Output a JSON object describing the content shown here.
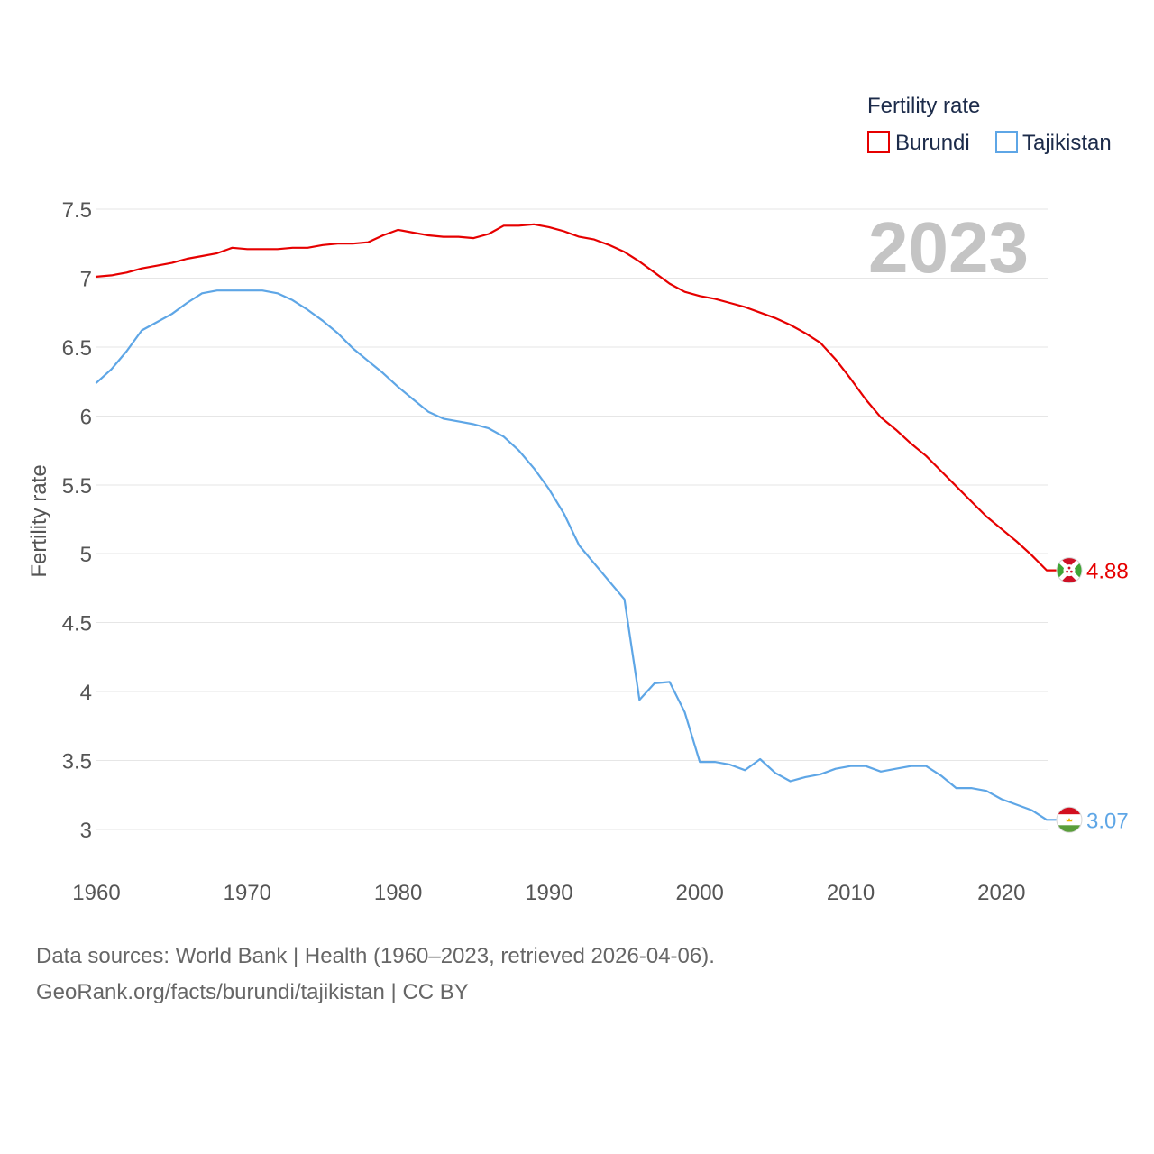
{
  "year_label": "2023",
  "chart_data": {
    "type": "line",
    "legend_title": "Fertility rate",
    "xlabel": "",
    "ylabel": "Fertility rate",
    "xlim": [
      1960,
      2023
    ],
    "ylim": [
      3,
      7.5
    ],
    "grid": true,
    "legend_position": "top-right",
    "x_ticks": [
      "1960",
      "1970",
      "1980",
      "1990",
      "2000",
      "2010",
      "2020"
    ],
    "y_ticks": [
      "3",
      "3.5",
      "4",
      "4.5",
      "5",
      "5.5",
      "6",
      "6.5",
      "7",
      "7.5"
    ],
    "x": [
      1960,
      1961,
      1962,
      1963,
      1964,
      1965,
      1966,
      1967,
      1968,
      1969,
      1970,
      1971,
      1972,
      1973,
      1974,
      1975,
      1976,
      1977,
      1978,
      1979,
      1980,
      1981,
      1982,
      1983,
      1984,
      1985,
      1986,
      1987,
      1988,
      1989,
      1990,
      1991,
      1992,
      1993,
      1994,
      1995,
      1996,
      1997,
      1998,
      1999,
      2000,
      2001,
      2002,
      2003,
      2004,
      2005,
      2006,
      2007,
      2008,
      2009,
      2010,
      2011,
      2012,
      2013,
      2014,
      2015,
      2016,
      2017,
      2018,
      2019,
      2020,
      2021,
      2022,
      2023
    ],
    "series": [
      {
        "name": "Burundi",
        "color": "#e60000",
        "icon": "burundi-flag-icon",
        "end_label": "4.88",
        "values": [
          7.01,
          7.02,
          7.04,
          7.07,
          7.09,
          7.11,
          7.14,
          7.16,
          7.18,
          7.22,
          7.21,
          7.21,
          7.21,
          7.22,
          7.22,
          7.24,
          7.25,
          7.25,
          7.26,
          7.31,
          7.35,
          7.33,
          7.31,
          7.3,
          7.3,
          7.29,
          7.32,
          7.38,
          7.38,
          7.39,
          7.37,
          7.34,
          7.3,
          7.28,
          7.24,
          7.19,
          7.12,
          7.04,
          6.96,
          6.9,
          6.87,
          6.85,
          6.82,
          6.79,
          6.75,
          6.71,
          6.66,
          6.6,
          6.53,
          6.41,
          6.27,
          6.12,
          5.99,
          5.9,
          5.8,
          5.71,
          5.6,
          5.49,
          5.38,
          5.27,
          5.18,
          5.09,
          4.99,
          4.88
        ]
      },
      {
        "name": "Tajikistan",
        "color": "#5ea6e6",
        "icon": "tajikistan-flag-icon",
        "end_label": "3.07",
        "values": [
          6.24,
          6.34,
          6.47,
          6.62,
          6.68,
          6.74,
          6.82,
          6.89,
          6.91,
          6.91,
          6.91,
          6.91,
          6.89,
          6.84,
          6.77,
          6.69,
          6.6,
          6.49,
          6.4,
          6.31,
          6.21,
          6.12,
          6.03,
          5.98,
          5.96,
          5.94,
          5.91,
          5.85,
          5.75,
          5.62,
          5.47,
          5.29,
          5.06,
          4.93,
          4.8,
          4.67,
          3.94,
          4.06,
          4.07,
          3.85,
          3.49,
          3.49,
          3.47,
          3.43,
          3.51,
          3.41,
          3.35,
          3.38,
          3.4,
          3.44,
          3.46,
          3.46,
          3.42,
          3.44,
          3.46,
          3.46,
          3.39,
          3.3,
          3.3,
          3.28,
          3.22,
          3.18,
          3.14,
          3.07
        ]
      }
    ]
  },
  "footer": {
    "source": "Data sources: World Bank | Health (1960–2023, retrieved 2026-04-06).",
    "credit": "GeoRank.org/facts/burundi/tajikistan | CC BY"
  }
}
